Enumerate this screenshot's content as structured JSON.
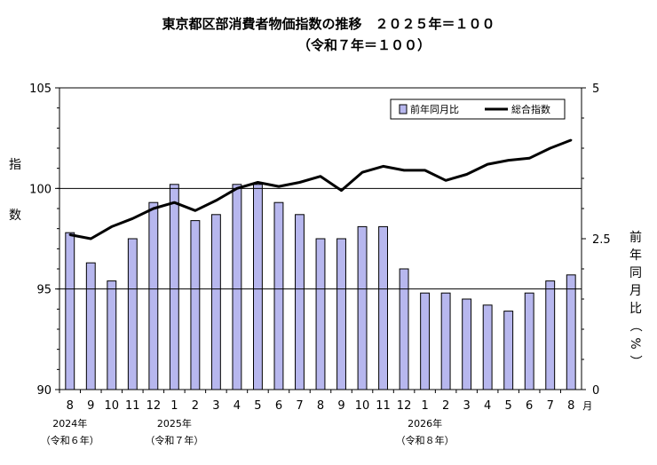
{
  "title": "東京都区部消費者物価指数の推移　２０２５年＝１００",
  "subtitle": "（令和７年＝１００）",
  "chart_data": {
    "type": "bar+line",
    "left_axis": {
      "label": "指数",
      "ylim": [
        90,
        105
      ],
      "ticks": [
        "90",
        "95",
        "100",
        "105"
      ]
    },
    "right_axis": {
      "label": "前年同月比（%）",
      "ylim": [
        0,
        5
      ],
      "ticks": [
        "0",
        "2.5",
        "5"
      ]
    },
    "categories": [
      "8",
      "9",
      "10",
      "11",
      "12",
      "1",
      "2",
      "3",
      "4",
      "5",
      "6",
      "7",
      "8",
      "9",
      "10",
      "11",
      "12",
      "1",
      "2",
      "3",
      "4",
      "5",
      "6",
      "7",
      "8"
    ],
    "month_suffix": "月",
    "year_labels": [
      {
        "index": 0,
        "year": "2024年",
        "era": "（令和６年）"
      },
      {
        "index": 5,
        "year": "2025年",
        "era": "（令和７年）"
      },
      {
        "index": 17,
        "year": "2026年",
        "era": "（令和８年）"
      }
    ],
    "series": [
      {
        "name": "前年同月比",
        "type": "bar",
        "axis": "right",
        "color": "#b7b7ee",
        "values": [
          2.6,
          2.1,
          1.8,
          2.5,
          3.1,
          3.4,
          2.8,
          2.9,
          3.4,
          3.4,
          3.1,
          2.9,
          2.5,
          2.5,
          2.7,
          2.7,
          2.0,
          1.6,
          1.6,
          1.5,
          1.4,
          1.3,
          1.6,
          1.8,
          1.9
        ]
      },
      {
        "name": "総合指数",
        "type": "line",
        "axis": "left",
        "color": "#000000",
        "values": [
          97.7,
          97.5,
          98.1,
          98.5,
          99.0,
          99.3,
          98.9,
          99.4,
          100.0,
          100.3,
          100.1,
          100.3,
          100.6,
          99.9,
          100.8,
          101.1,
          100.9,
          100.9,
          100.4,
          100.7,
          101.2,
          101.4,
          101.5,
          102.0,
          102.4
        ]
      }
    ],
    "reference_lines": [
      95,
      100
    ],
    "legend_placement": "top-right"
  }
}
